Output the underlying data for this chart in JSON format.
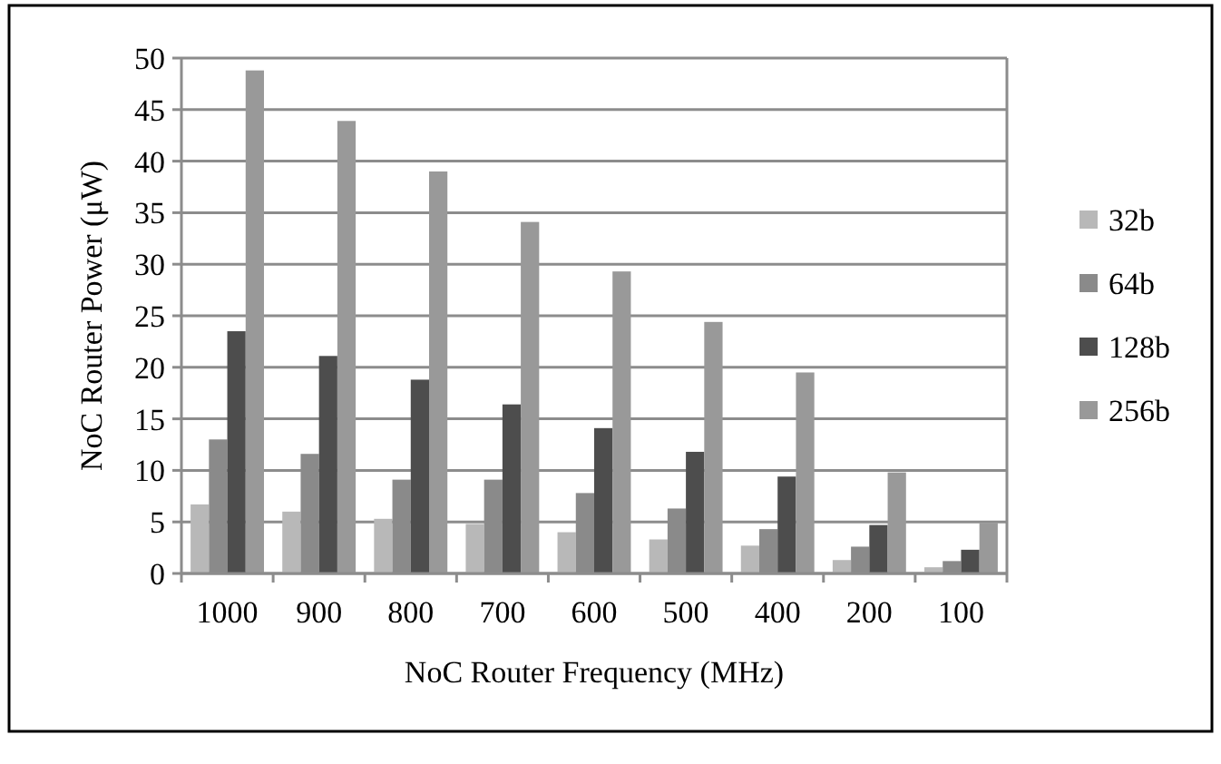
{
  "chart_data": {
    "type": "bar",
    "xlabel": "NoC Router Frequency  (MHz)",
    "ylabel": "NoC Router Power (μW)",
    "categories": [
      "1000",
      "900",
      "800",
      "700",
      "600",
      "500",
      "400",
      "200",
      "100"
    ],
    "series": [
      {
        "name": "32b",
        "color": "#b8b8b8",
        "values": [
          6.7,
          6.0,
          5.3,
          4.8,
          4.0,
          3.3,
          2.7,
          1.3,
          0.6
        ]
      },
      {
        "name": "64b",
        "color": "#8a8a8a",
        "values": [
          13.0,
          11.6,
          9.1,
          9.1,
          7.8,
          6.3,
          4.3,
          2.6,
          1.2
        ]
      },
      {
        "name": "128b",
        "color": "#4d4d4d",
        "values": [
          23.5,
          21.1,
          18.8,
          16.4,
          14.1,
          11.8,
          9.4,
          4.7,
          2.3
        ]
      },
      {
        "name": "256b",
        "color": "#999999",
        "values": [
          48.8,
          43.9,
          39.0,
          34.1,
          29.3,
          24.4,
          19.5,
          9.8,
          4.9
        ]
      }
    ],
    "ylim": [
      0,
      50
    ],
    "yticks": [
      0,
      5,
      10,
      15,
      20,
      25,
      30,
      35,
      40,
      45,
      50
    ],
    "grid": "y",
    "legend": "right"
  }
}
